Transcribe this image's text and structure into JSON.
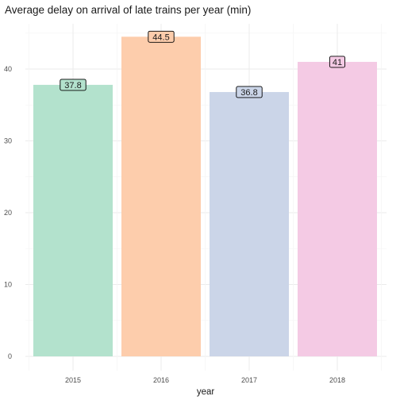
{
  "chart_data": {
    "type": "bar",
    "title": "Average delay on arrival of late trains per year (min)",
    "xlabel": "year",
    "ylabel": "",
    "categories": [
      "2015",
      "2016",
      "2017",
      "2018"
    ],
    "values": [
      37.8,
      44.5,
      36.8,
      41
    ],
    "value_labels": [
      "37.8",
      "44.5",
      "36.8",
      "41"
    ],
    "ylim": [
      0,
      47
    ],
    "yticks": [
      0,
      10,
      20,
      30,
      40
    ],
    "grid": true,
    "legend": "none",
    "colors": [
      "#b3e2cd",
      "#fdcdac",
      "#cbd5e8",
      "#f4cae4"
    ]
  }
}
